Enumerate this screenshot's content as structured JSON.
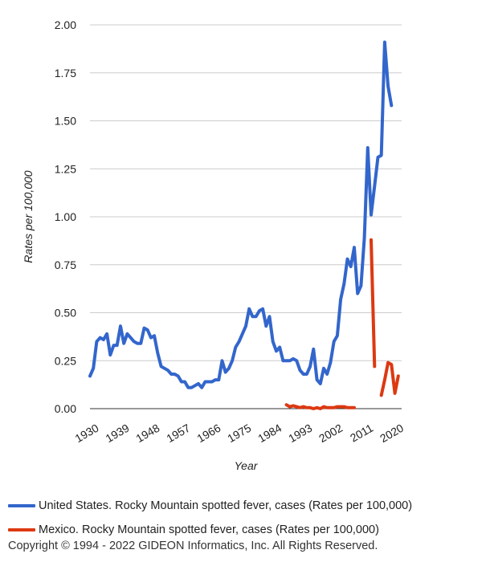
{
  "chart_data": {
    "type": "line",
    "title": "",
    "xlabel": "Year",
    "ylabel": "Rates per 100,000",
    "xlim": [
      1930,
      2022
    ],
    "ylim": [
      0,
      2.0
    ],
    "y_ticks": [
      "0.00",
      "0.25",
      "0.50",
      "0.75",
      "1.00",
      "1.25",
      "1.50",
      "1.75",
      "2.00"
    ],
    "x_ticks": [
      "1930",
      "1939",
      "1948",
      "1957",
      "1966",
      "1975",
      "1984",
      "1993",
      "2002",
      "2011",
      "2020"
    ],
    "grid": "horizontal",
    "legend_position": "bottom",
    "series": [
      {
        "name": "United States. Rocky Mountain spotted fever, cases (Rates per 100,000)",
        "color": "#3366cc",
        "segments": [
          [
            [
              1930,
              0.17
            ],
            [
              1931,
              0.21
            ],
            [
              1932,
              0.35
            ],
            [
              1933,
              0.37
            ],
            [
              1934,
              0.36
            ],
            [
              1935,
              0.39
            ],
            [
              1936,
              0.28
            ],
            [
              1937,
              0.33
            ],
            [
              1938,
              0.33
            ],
            [
              1939,
              0.43
            ],
            [
              1940,
              0.34
            ],
            [
              1941,
              0.39
            ],
            [
              1942,
              0.37
            ],
            [
              1943,
              0.35
            ],
            [
              1944,
              0.34
            ],
            [
              1945,
              0.34
            ],
            [
              1946,
              0.42
            ],
            [
              1947,
              0.41
            ],
            [
              1948,
              0.37
            ],
            [
              1949,
              0.38
            ],
            [
              1950,
              0.29
            ],
            [
              1951,
              0.22
            ],
            [
              1952,
              0.21
            ],
            [
              1953,
              0.2
            ],
            [
              1954,
              0.18
            ],
            [
              1955,
              0.18
            ],
            [
              1956,
              0.17
            ],
            [
              1957,
              0.14
            ],
            [
              1958,
              0.14
            ],
            [
              1959,
              0.11
            ],
            [
              1960,
              0.11
            ],
            [
              1961,
              0.12
            ],
            [
              1962,
              0.13
            ],
            [
              1963,
              0.11
            ],
            [
              1964,
              0.14
            ],
            [
              1965,
              0.14
            ],
            [
              1966,
              0.14
            ],
            [
              1967,
              0.15
            ],
            [
              1968,
              0.15
            ],
            [
              1969,
              0.25
            ],
            [
              1970,
              0.19
            ],
            [
              1971,
              0.21
            ],
            [
              1972,
              0.25
            ],
            [
              1973,
              0.32
            ],
            [
              1974,
              0.35
            ],
            [
              1975,
              0.39
            ],
            [
              1976,
              0.43
            ],
            [
              1977,
              0.52
            ],
            [
              1978,
              0.48
            ],
            [
              1979,
              0.48
            ],
            [
              1980,
              0.51
            ],
            [
              1981,
              0.52
            ],
            [
              1982,
              0.43
            ],
            [
              1983,
              0.48
            ],
            [
              1984,
              0.35
            ],
            [
              1985,
              0.3
            ],
            [
              1986,
              0.32
            ],
            [
              1987,
              0.25
            ],
            [
              1988,
              0.25
            ],
            [
              1989,
              0.25
            ],
            [
              1990,
              0.26
            ],
            [
              1991,
              0.25
            ],
            [
              1992,
              0.2
            ],
            [
              1993,
              0.18
            ],
            [
              1994,
              0.18
            ],
            [
              1995,
              0.22
            ],
            [
              1996,
              0.31
            ],
            [
              1997,
              0.15
            ],
            [
              1998,
              0.13
            ],
            [
              1999,
              0.21
            ],
            [
              2000,
              0.18
            ],
            [
              2001,
              0.24
            ],
            [
              2002,
              0.35
            ],
            [
              2003,
              0.38
            ],
            [
              2004,
              0.57
            ],
            [
              2005,
              0.65
            ],
            [
              2006,
              0.78
            ],
            [
              2007,
              0.74
            ],
            [
              2008,
              0.84
            ],
            [
              2009,
              0.6
            ],
            [
              2010,
              0.64
            ],
            [
              2011,
              0.89
            ],
            [
              2012,
              1.36
            ],
            [
              2013,
              1.01
            ],
            [
              2014,
              1.16
            ],
            [
              2015,
              1.31
            ],
            [
              2016,
              1.32
            ],
            [
              2017,
              1.91
            ],
            [
              2018,
              1.68
            ],
            [
              2019,
              1.58
            ]
          ]
        ]
      },
      {
        "name": "Mexico. Rocky Mountain spotted fever, cases (Rates per 100,000)",
        "color": "#dc3912",
        "segments": [
          [
            [
              1988,
              0.02
            ],
            [
              1989,
              0.01
            ],
            [
              1990,
              0.015
            ],
            [
              1991,
              0.01
            ],
            [
              1992,
              0.005
            ],
            [
              1993,
              0.01
            ],
            [
              1994,
              0.005
            ],
            [
              1995,
              0.005
            ],
            [
              1996,
              0.0
            ],
            [
              1997,
              0.005
            ],
            [
              1998,
              0.0
            ],
            [
              1999,
              0.01
            ],
            [
              2000,
              0.005
            ],
            [
              2001,
              0.005
            ],
            [
              2002,
              0.005
            ],
            [
              2003,
              0.01
            ],
            [
              2004,
              0.01
            ],
            [
              2005,
              0.01
            ],
            [
              2006,
              0.005
            ],
            [
              2007,
              0.005
            ],
            [
              2008,
              0.005
            ]
          ],
          [
            [
              2013,
              0.88
            ],
            [
              2014,
              0.22
            ]
          ],
          [
            [
              2016,
              0.07
            ],
            [
              2017,
              0.15
            ],
            [
              2018,
              0.24
            ],
            [
              2019,
              0.23
            ],
            [
              2020,
              0.08
            ],
            [
              2021,
              0.17
            ]
          ]
        ]
      }
    ]
  },
  "copyright": "Copyright © 1994 - 2022 GIDEON Informatics, Inc. All Rights Reserved."
}
